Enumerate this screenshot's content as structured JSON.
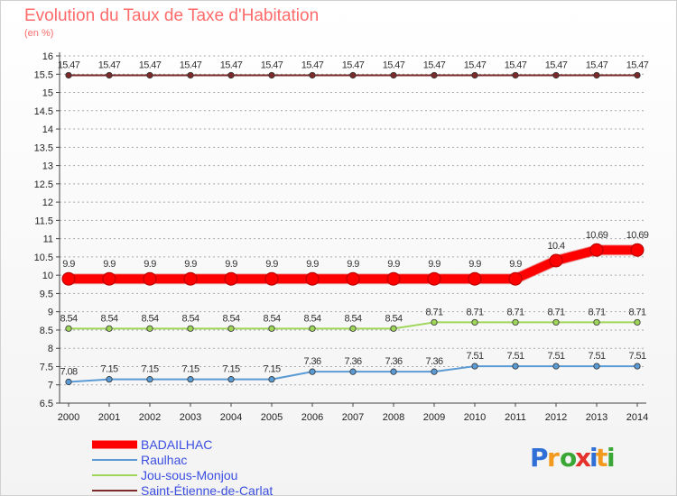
{
  "header": {
    "title": "Evolution du Taux de Taxe d'Habitation",
    "unit": "(en %)"
  },
  "brand": {
    "name": "Proxiti",
    "letters": [
      "P",
      "r",
      "o",
      "x",
      "i",
      "t",
      "i"
    ],
    "colors": [
      "#2f6fd6",
      "#f39a1e",
      "#3aa635",
      "#e4312b",
      "#2f6fd6",
      "#f39a1e",
      "#3aa635"
    ]
  },
  "chart_data": {
    "type": "line",
    "title": "Evolution du Taux de Taxe d'Habitation",
    "ylabel": "(en %)",
    "xlabel": "",
    "ylim": [
      6.5,
      16
    ],
    "ytick_step": 0.5,
    "y_ticks": [
      "6.5",
      "7",
      "7.5",
      "8",
      "8.5",
      "9",
      "9.5",
      "10",
      "10.5",
      "11",
      "11.5",
      "12",
      "12.5",
      "13",
      "13.5",
      "14",
      "14.5",
      "15",
      "15.5",
      "16"
    ],
    "x": [
      "2000",
      "2001",
      "2002",
      "2003",
      "2004",
      "2005",
      "2006",
      "2007",
      "2008",
      "2009",
      "2010",
      "2011",
      "2012",
      "2013",
      "2014"
    ],
    "legend_position": "bottom-left",
    "series": [
      {
        "name": "BADAILHAC",
        "color": "#ff0000",
        "values": [
          9.9,
          9.9,
          9.9,
          9.9,
          9.9,
          9.9,
          9.9,
          9.9,
          9.9,
          9.9,
          9.9,
          9.9,
          10.4,
          10.69,
          10.69
        ],
        "labels": [
          "9.9",
          "9.9",
          "9.9",
          "9.9",
          "9.9",
          "9.9",
          "9.9",
          "9.9",
          "9.9",
          "9.9",
          "9.9",
          "9.9",
          "10.4",
          "10.69",
          "10.69"
        ]
      },
      {
        "name": "Raulhac",
        "color": "#5b9bd5",
        "values": [
          7.08,
          7.15,
          7.15,
          7.15,
          7.15,
          7.15,
          7.36,
          7.36,
          7.36,
          7.36,
          7.51,
          7.51,
          7.51,
          7.51,
          7.51
        ],
        "labels": [
          "7.08",
          "7.15",
          "7.15",
          "7.15",
          "7.15",
          "7.15",
          "7.36",
          "7.36",
          "7.36",
          "7.36",
          "7.51",
          "7.51",
          "7.51",
          "7.51",
          "7.51"
        ]
      },
      {
        "name": "Jou-sous-Monjou",
        "color": "#9fd65a",
        "values": [
          8.54,
          8.54,
          8.54,
          8.54,
          8.54,
          8.54,
          8.54,
          8.54,
          8.54,
          8.71,
          8.71,
          8.71,
          8.71,
          8.71,
          8.71
        ],
        "labels": [
          "8.54",
          "8.54",
          "8.54",
          "8.54",
          "8.54",
          "8.54",
          "8.54",
          "8.54",
          "8.54",
          "8.71",
          "8.71",
          "8.71",
          "8.71",
          "8.71",
          "8.71"
        ]
      },
      {
        "name": "Saint-Étienne-de-Carlat",
        "color": "#7a2a2a",
        "values": [
          15.47,
          15.47,
          15.47,
          15.47,
          15.47,
          15.47,
          15.47,
          15.47,
          15.47,
          15.47,
          15.47,
          15.47,
          15.47,
          15.47,
          15.47
        ],
        "labels": [
          "15.47",
          "15.47",
          "15.47",
          "15.47",
          "15.47",
          "15.47",
          "15.47",
          "15.47",
          "15.47",
          "15.47",
          "15.47",
          "15.47",
          "15.47",
          "15.47",
          "15.47"
        ]
      }
    ]
  }
}
